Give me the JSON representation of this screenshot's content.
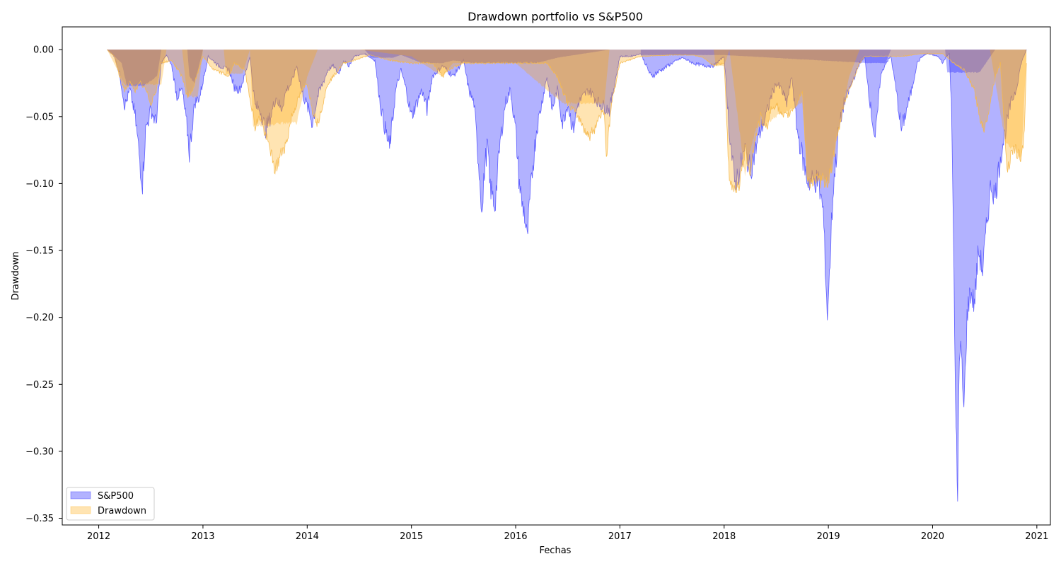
{
  "chart_data": {
    "type": "area",
    "title": "Drawdown portfolio vs S&P500",
    "xlabel": "Fechas",
    "ylabel": "Drawdown",
    "xlim": [
      2011.65,
      2021.13
    ],
    "ylim": [
      -0.355,
      0.017
    ],
    "xticks": [
      2012,
      2013,
      2014,
      2015,
      2016,
      2017,
      2018,
      2019,
      2020,
      2021
    ],
    "xtick_labels": [
      "2012",
      "2013",
      "2014",
      "2015",
      "2016",
      "2017",
      "2018",
      "2019",
      "2020",
      "2021"
    ],
    "yticks": [
      0.0,
      -0.05,
      -0.1,
      -0.15,
      -0.2,
      -0.25,
      -0.3,
      -0.35
    ],
    "ytick_labels": [
      "0.00",
      "−0.05",
      "−0.10",
      "−0.15",
      "−0.20",
      "−0.25",
      "−0.30",
      "−0.35"
    ],
    "grid": false,
    "legend": {
      "placement": "lower-left",
      "entries": [
        "S&P500",
        "Drawdown"
      ]
    },
    "series": [
      {
        "name": "S&P500",
        "color": "#0000ff",
        "x": [
          2012.08,
          2012.15,
          2012.2,
          2012.25,
          2012.3,
          2012.35,
          2012.4,
          2012.42,
          2012.45,
          2012.5,
          2012.55,
          2012.6,
          2012.65,
          2012.7,
          2012.75,
          2012.8,
          2012.85,
          2012.87,
          2012.92,
          2012.97,
          2013.05,
          2013.15,
          2013.25,
          2013.3,
          2013.35,
          2013.4,
          2013.45,
          2013.5,
          2013.55,
          2013.6,
          2013.65,
          2013.7,
          2013.75,
          2013.8,
          2013.85,
          2013.9,
          2013.95,
          2014.0,
          2014.05,
          2014.1,
          2014.15,
          2014.2,
          2014.25,
          2014.3,
          2014.35,
          2014.4,
          2014.45,
          2014.55,
          2014.65,
          2014.7,
          2014.75,
          2014.79,
          2014.85,
          2014.9,
          2014.95,
          2015.0,
          2015.05,
          2015.1,
          2015.15,
          2015.2,
          2015.3,
          2015.4,
          2015.5,
          2015.55,
          2015.6,
          2015.65,
          2015.68,
          2015.7,
          2015.73,
          2015.75,
          2015.8,
          2015.85,
          2015.9,
          2015.95,
          2016.0,
          2016.03,
          2016.06,
          2016.08,
          2016.11,
          2016.13,
          2016.16,
          2016.2,
          2016.25,
          2016.3,
          2016.35,
          2016.4,
          2016.45,
          2016.5,
          2016.55,
          2016.6,
          2016.7,
          2016.8,
          2016.9,
          2017.0,
          2017.1,
          2017.2,
          2017.3,
          2017.4,
          2017.5,
          2017.6,
          2017.7,
          2017.8,
          2017.9,
          2018.0,
          2018.05,
          2018.1,
          2018.15,
          2018.2,
          2018.25,
          2018.3,
          2018.35,
          2018.4,
          2018.45,
          2018.5,
          2018.55,
          2018.6,
          2018.65,
          2018.7,
          2018.75,
          2018.8,
          2018.85,
          2018.9,
          2018.95,
          2018.97,
          2018.99,
          2019.01,
          2019.03,
          2019.05,
          2019.1,
          2019.15,
          2019.2,
          2019.25,
          2019.3,
          2019.35,
          2019.4,
          2019.45,
          2019.5,
          2019.55,
          2019.6,
          2019.65,
          2019.7,
          2019.75,
          2019.8,
          2019.85,
          2019.9,
          2019.95,
          2020.0,
          2020.05,
          2020.1,
          2020.13,
          2020.16,
          2020.18,
          2020.2,
          2020.21,
          2020.22,
          2020.23,
          2020.24,
          2020.25,
          2020.27,
          2020.3,
          2020.33,
          2020.36,
          2020.4,
          2020.44,
          2020.48,
          2020.52,
          2020.56,
          2020.6,
          2020.65,
          2020.7,
          2020.75,
          2020.8,
          2020.85,
          2020.9
        ],
        "y": [
          0,
          -0.005,
          -0.018,
          -0.042,
          -0.03,
          -0.05,
          -0.087,
          -0.099,
          -0.06,
          -0.045,
          -0.055,
          -0.01,
          -0.004,
          -0.012,
          -0.035,
          -0.03,
          -0.06,
          -0.077,
          -0.04,
          -0.035,
          -0.005,
          -0.012,
          -0.015,
          -0.028,
          -0.03,
          -0.02,
          -0.005,
          -0.042,
          -0.045,
          -0.06,
          -0.05,
          -0.035,
          -0.045,
          -0.03,
          -0.025,
          -0.012,
          -0.032,
          -0.042,
          -0.055,
          -0.035,
          -0.025,
          -0.015,
          -0.012,
          -0.018,
          -0.008,
          -0.012,
          -0.005,
          -0.003,
          -0.008,
          -0.04,
          -0.06,
          -0.074,
          -0.03,
          -0.015,
          -0.03,
          -0.05,
          -0.04,
          -0.03,
          -0.045,
          -0.02,
          -0.012,
          -0.02,
          -0.008,
          -0.03,
          -0.04,
          -0.09,
          -0.123,
          -0.09,
          -0.07,
          -0.1,
          -0.117,
          -0.07,
          -0.04,
          -0.03,
          -0.06,
          -0.095,
          -0.115,
          -0.12,
          -0.142,
          -0.12,
          -0.09,
          -0.06,
          -0.04,
          -0.02,
          -0.045,
          -0.03,
          -0.055,
          -0.04,
          -0.06,
          -0.04,
          -0.03,
          -0.04,
          -0.045,
          -0.005,
          -0.005,
          -0.003,
          -0.02,
          -0.015,
          -0.01,
          -0.006,
          -0.01,
          -0.012,
          -0.012,
          -0.005,
          -0.06,
          -0.1,
          -0.09,
          -0.075,
          -0.09,
          -0.075,
          -0.06,
          -0.05,
          -0.035,
          -0.025,
          -0.03,
          -0.04,
          -0.02,
          -0.06,
          -0.08,
          -0.098,
          -0.098,
          -0.098,
          -0.12,
          -0.16,
          -0.198,
          -0.17,
          -0.13,
          -0.1,
          -0.06,
          -0.04,
          -0.03,
          -0.02,
          -0.01,
          -0.006,
          -0.04,
          -0.068,
          -0.02,
          -0.01,
          -0.005,
          -0.03,
          -0.06,
          -0.045,
          -0.03,
          -0.01,
          -0.005,
          -0.003,
          -0.004,
          -0.005,
          -0.01,
          -0.005,
          -0.003,
          -0.04,
          -0.127,
          -0.2,
          -0.27,
          -0.296,
          -0.34,
          -0.25,
          -0.22,
          -0.27,
          -0.2,
          -0.18,
          -0.19,
          -0.15,
          -0.165,
          -0.13,
          -0.1,
          -0.11,
          -0.08,
          -0.06,
          -0.04,
          -0.03,
          -0.01,
          0
        ],
        "smooth": [
          [
            2012.08,
            0
          ],
          [
            2012.22,
            -0.01
          ],
          [
            2012.27,
            -0.027
          ],
          [
            2012.43,
            -0.027
          ],
          [
            2012.56,
            -0.02
          ],
          [
            2012.6,
            0
          ],
          [
            2012.85,
            0
          ],
          [
            2012.87,
            -0.02
          ],
          [
            2012.92,
            -0.025
          ],
          [
            2013.0,
            0
          ],
          [
            2014.55,
            0
          ],
          [
            2014.62,
            -0.006
          ],
          [
            2014.82,
            -0.006
          ],
          [
            2014.9,
            -0.004
          ],
          [
            2015.1,
            -0.01
          ],
          [
            2015.3,
            -0.01
          ],
          [
            2015.4,
            -0.008
          ],
          [
            2015.6,
            -0.01
          ],
          [
            2015.95,
            -0.01
          ],
          [
            2016.2,
            -0.01
          ],
          [
            2016.4,
            -0.006
          ],
          [
            2016.9,
            0
          ],
          [
            2017.2,
            0
          ],
          [
            2017.2,
            -0.004
          ],
          [
            2018.0,
            -0.004
          ],
          [
            2019.38,
            -0.01
          ],
          [
            2019.55,
            -0.01
          ],
          [
            2019.6,
            0
          ],
          [
            2020.12,
            0
          ],
          [
            2020.14,
            -0.017
          ],
          [
            2020.45,
            -0.017
          ],
          [
            2020.6,
            0
          ]
        ]
      },
      {
        "name": "Drawdown",
        "color": "#ffa500",
        "x": [
          2012.08,
          2012.15,
          2012.2,
          2012.25,
          2012.3,
          2012.35,
          2012.4,
          2012.45,
          2012.5,
          2012.55,
          2012.6,
          2012.7,
          2012.8,
          2012.85,
          2012.9,
          2013.0,
          2013.1,
          2013.2,
          2013.25,
          2013.3,
          2013.4,
          2013.45,
          2013.5,
          2013.55,
          2013.6,
          2013.65,
          2013.68,
          2013.72,
          2013.76,
          2013.8,
          2013.85,
          2013.9,
          2013.95,
          2014.0,
          2014.05,
          2014.1,
          2014.15,
          2014.2,
          2014.25,
          2014.3,
          2014.35,
          2014.45,
          2014.6,
          2014.8,
          2015.0,
          2015.2,
          2015.3,
          2015.35,
          2015.5,
          2015.7,
          2016.0,
          2016.3,
          2016.4,
          2016.5,
          2016.6,
          2016.7,
          2016.75,
          2016.8,
          2016.85,
          2016.87,
          2016.92,
          2017.0,
          2017.2,
          2017.5,
          2017.7,
          2017.8,
          2017.9,
          2018.0,
          2018.05,
          2018.1,
          2018.15,
          2018.2,
          2018.25,
          2018.3,
          2018.35,
          2018.4,
          2018.45,
          2018.5,
          2018.55,
          2018.6,
          2018.65,
          2018.7,
          2018.75,
          2018.8,
          2018.85,
          2018.9,
          2018.95,
          2019.0,
          2019.05,
          2019.1,
          2019.15,
          2019.2,
          2019.25,
          2019.3,
          2019.35,
          2019.4,
          2019.5,
          2019.7,
          2019.9,
          2020.1,
          2020.2,
          2020.3,
          2020.4,
          2020.45,
          2020.5,
          2020.55,
          2020.6,
          2020.65,
          2020.7,
          2020.72,
          2020.75,
          2020.8,
          2020.85,
          2020.88,
          2020.9
        ],
        "y": [
          0,
          -0.005,
          -0.02,
          -0.03,
          -0.025,
          -0.03,
          -0.025,
          -0.03,
          -0.04,
          -0.03,
          -0.01,
          -0.008,
          -0.02,
          -0.035,
          -0.03,
          -0.005,
          -0.015,
          -0.018,
          -0.02,
          -0.01,
          -0.015,
          -0.035,
          -0.057,
          -0.05,
          -0.065,
          -0.075,
          -0.09,
          -0.085,
          -0.075,
          -0.07,
          -0.05,
          -0.04,
          -0.03,
          -0.025,
          -0.045,
          -0.055,
          -0.04,
          -0.025,
          -0.02,
          -0.015,
          -0.01,
          -0.008,
          -0.004,
          -0.008,
          -0.01,
          -0.01,
          -0.02,
          -0.015,
          -0.01,
          -0.01,
          -0.01,
          -0.01,
          -0.02,
          -0.04,
          -0.05,
          -0.065,
          -0.06,
          -0.05,
          -0.045,
          -0.08,
          -0.04,
          -0.01,
          -0.005,
          -0.004,
          -0.004,
          -0.006,
          -0.012,
          -0.01,
          -0.1,
          -0.103,
          -0.1,
          -0.075,
          -0.09,
          -0.065,
          -0.05,
          -0.06,
          -0.045,
          -0.04,
          -0.05,
          -0.05,
          -0.045,
          -0.04,
          -0.03,
          -0.098,
          -0.098,
          -0.098,
          -0.098,
          -0.098,
          -0.08,
          -0.06,
          -0.04,
          -0.03,
          -0.02,
          -0.01,
          -0.005,
          -0.005,
          -0.005,
          -0.005,
          -0.003,
          -0.003,
          -0.01,
          -0.015,
          -0.03,
          -0.05,
          -0.06,
          -0.04,
          -0.02,
          -0.01,
          -0.07,
          -0.09,
          -0.08,
          -0.075,
          -0.082,
          -0.06,
          -0.01
        ],
        "smooth": [
          [
            2012.08,
            0
          ],
          [
            2012.25,
            -0.026
          ],
          [
            2012.6,
            -0.026
          ],
          [
            2012.65,
            0
          ],
          [
            2012.8,
            0
          ],
          [
            2012.85,
            -0.035
          ],
          [
            2012.95,
            -0.035
          ],
          [
            2013.0,
            0
          ],
          [
            2013.2,
            0
          ],
          [
            2013.22,
            -0.018
          ],
          [
            2013.38,
            -0.018
          ],
          [
            2013.45,
            0
          ],
          [
            2013.48,
            -0.057
          ],
          [
            2013.65,
            -0.057
          ],
          [
            2013.7,
            -0.055
          ],
          [
            2013.9,
            -0.055
          ],
          [
            2014.0,
            -0.02
          ],
          [
            2014.1,
            0
          ],
          [
            2014.5,
            0
          ],
          [
            2015.0,
            -0.005
          ],
          [
            2015.3,
            -0.02
          ],
          [
            2015.4,
            -0.01
          ],
          [
            2016.0,
            -0.01
          ],
          [
            2016.45,
            -0.04
          ],
          [
            2016.85,
            -0.04
          ],
          [
            2016.9,
            0
          ],
          [
            2017.9,
            0
          ],
          [
            2017.92,
            -0.012
          ],
          [
            2018.0,
            -0.012
          ],
          [
            2018.05,
            0
          ],
          [
            2018.2,
            -0.093
          ],
          [
            2018.3,
            -0.06
          ],
          [
            2018.5,
            -0.05
          ],
          [
            2018.75,
            -0.04
          ],
          [
            2018.8,
            -0.098
          ],
          [
            2019.0,
            -0.098
          ],
          [
            2019.2,
            -0.02
          ],
          [
            2019.3,
            0
          ],
          [
            2020.2,
            0
          ],
          [
            2020.55,
            0
          ],
          [
            2020.7,
            -0.07
          ],
          [
            2020.8,
            -0.075
          ],
          [
            2020.85,
            -0.082
          ],
          [
            2020.9,
            -0.005
          ]
        ]
      }
    ]
  }
}
